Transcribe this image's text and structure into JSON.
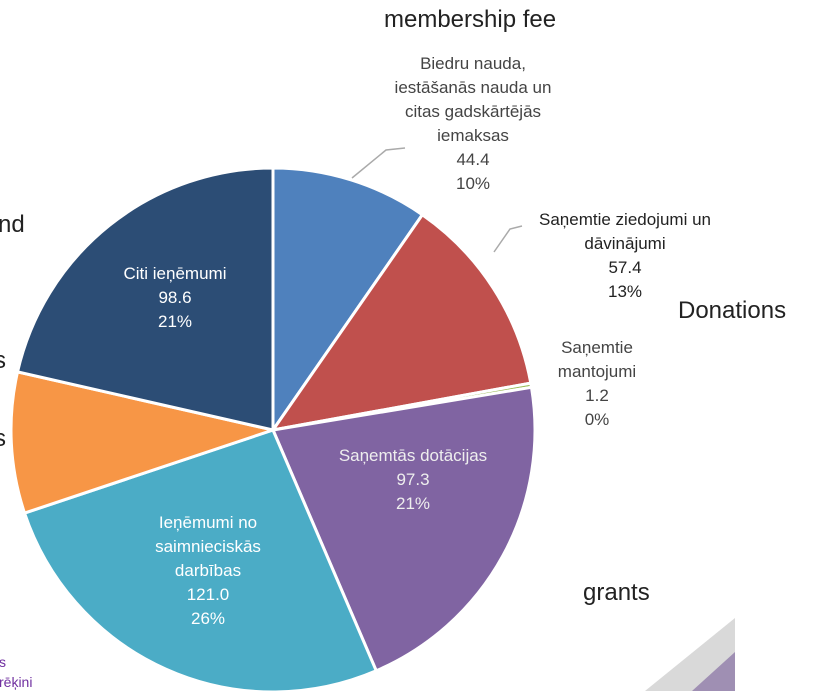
{
  "chart_data": {
    "type": "pie",
    "categories": [
      "Biedru nauda, iestāšanās nauda un citas gadskārtējās iemaksas",
      "Saņemtie ziedojumi un dāvinājumi",
      "Saņemtie mantojumi",
      "Saņemtās dotācijas",
      "Ieņēmumi no saimnieciskās darbības",
      null,
      "Citi ieņēmumi"
    ],
    "values": [
      44.4,
      57.4,
      1.2,
      97.3,
      121.0,
      40,
      98.6
    ],
    "value_labels": [
      "44.4",
      "57.4",
      "1.2",
      "97.3",
      "121.0",
      null,
      "98.6"
    ],
    "percent_labels": [
      "10%",
      "13%",
      "0%",
      "21%",
      "26%",
      null,
      "21%"
    ],
    "colors": [
      "#4f81bd",
      "#c0504d",
      "#9bbb59",
      "#8064a2",
      "#4bacc6",
      "#f79646",
      "#2c4d75"
    ],
    "annotations": [
      "membership fee",
      "Donations",
      "grants"
    ],
    "cropped_text": [
      "nd",
      "s",
      "s",
      "s",
      "rēķini"
    ]
  }
}
